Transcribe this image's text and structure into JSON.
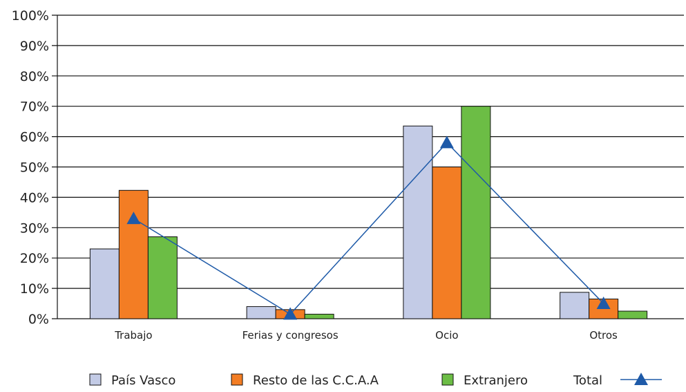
{
  "chart_data": {
    "type": "bar",
    "categories": [
      "Trabajo",
      "Ferias y congresos",
      "Ocio",
      "Otros"
    ],
    "series": [
      {
        "name": "País Vasco",
        "values": [
          23,
          4,
          63.5,
          8.7
        ],
        "color": "#c3cbe6"
      },
      {
        "name": "Resto de las C.C.A.A",
        "values": [
          42.3,
          3,
          50,
          6.5
        ],
        "color": "#f37d24"
      },
      {
        "name": "Extranjero",
        "values": [
          27,
          1.5,
          70,
          2.5
        ],
        "color": "#6cbd45"
      }
    ],
    "line_series": {
      "name": "Total",
      "values": [
        33,
        1.5,
        58,
        5
      ],
      "color": "#1e5aa8",
      "marker": "triangle"
    },
    "yticks": [
      "0%",
      "10%",
      "20%",
      "30%",
      "40%",
      "50%",
      "60%",
      "70%",
      "80%",
      "90%",
      "100%"
    ],
    "ylim": [
      0,
      100
    ],
    "grid": true,
    "legend_position": "bottom"
  }
}
